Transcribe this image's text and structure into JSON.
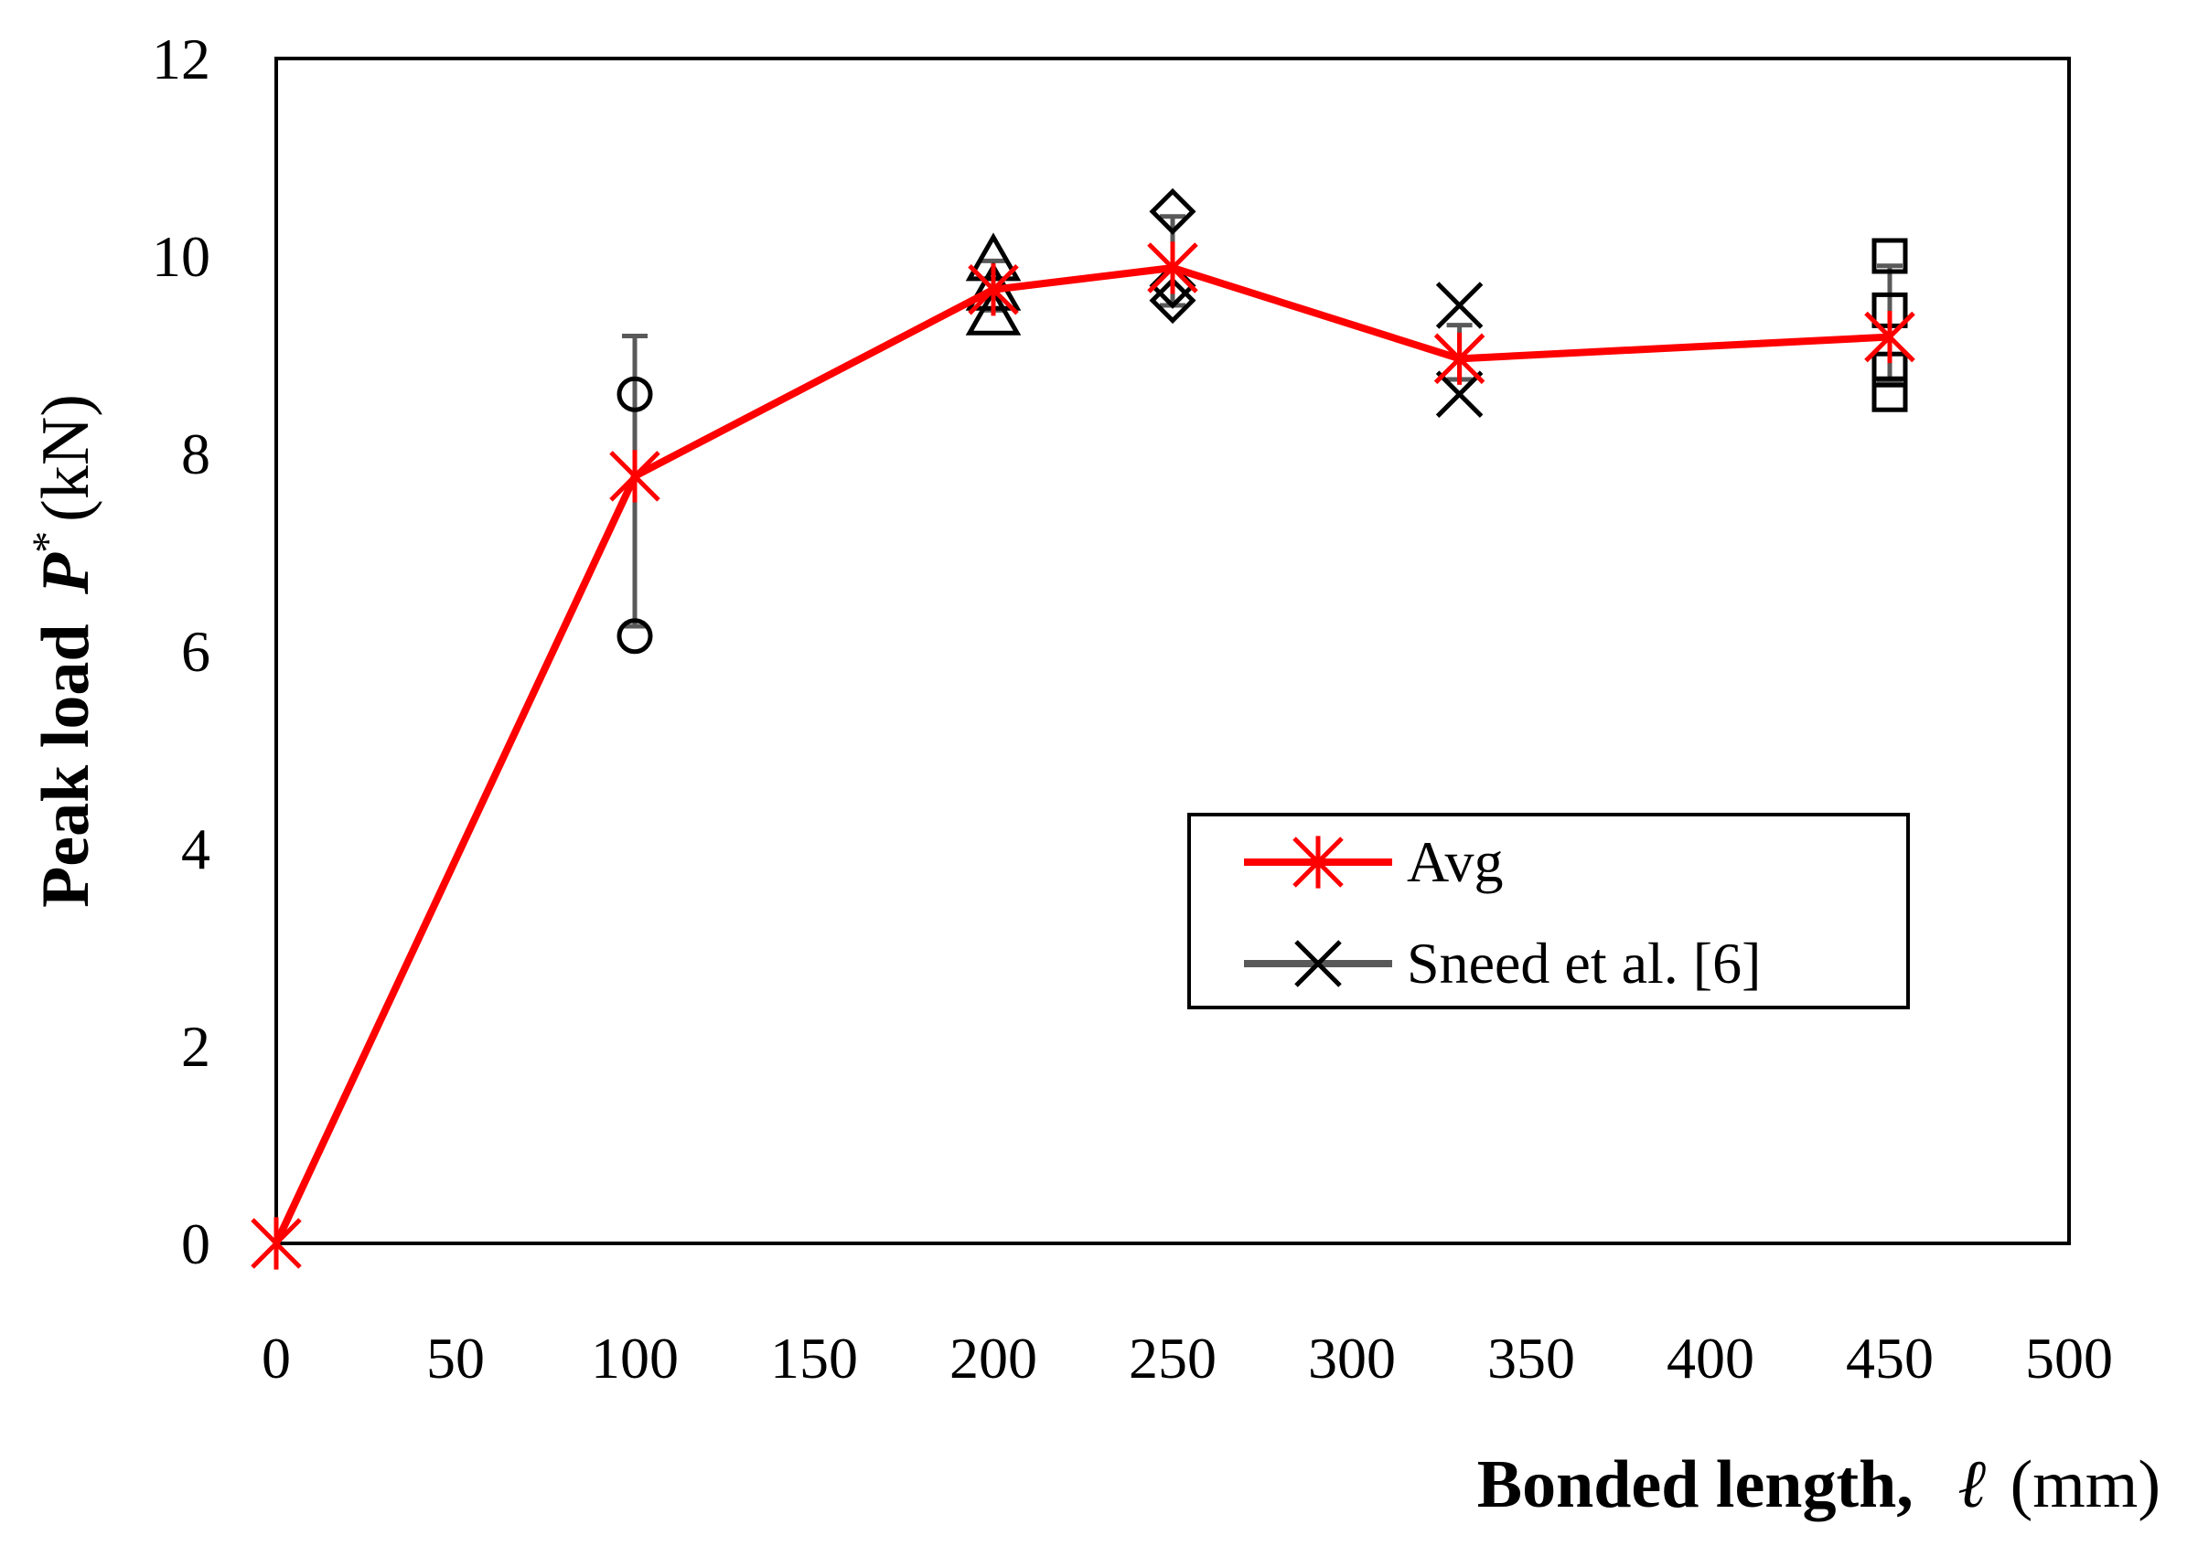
{
  "chart_data": {
    "type": "line",
    "title": "",
    "xlabel": {
      "main": "Bonded length,",
      "symbol": "ℓ",
      "unit": "(mm)"
    },
    "ylabel": {
      "main": "Peak load",
      "symbol": "P",
      "superscript": "*",
      "unit": "(kN)"
    },
    "xlim": [
      0,
      500
    ],
    "ylim": [
      0,
      12
    ],
    "xticks": [
      0,
      50,
      100,
      150,
      200,
      250,
      300,
      350,
      400,
      450,
      500
    ],
    "yticks": [
      0,
      2,
      4,
      6,
      8,
      10,
      12
    ],
    "grid": false,
    "legend_position": "center-right",
    "series": [
      {
        "name": "Avg",
        "color": "#ff0000",
        "marker": "asterisk",
        "points": [
          {
            "x": 0,
            "y": 0
          },
          {
            "x": 100,
            "y": 7.77
          },
          {
            "x": 200,
            "y": 9.66
          },
          {
            "x": 250,
            "y": 9.88
          },
          {
            "x": 330,
            "y": 8.96
          },
          {
            "x": 450,
            "y": 9.18
          }
        ]
      },
      {
        "name": "Sneed et al. [6]",
        "color": "#595959",
        "marker": "x",
        "error_bars": [
          {
            "x": 100,
            "low": 6.25,
            "high": 9.19
          },
          {
            "x": 200,
            "low": 9.45,
            "high": 9.95
          },
          {
            "x": 250,
            "low": 9.5,
            "high": 10.4
          },
          {
            "x": 330,
            "low": 8.75,
            "high": 9.3
          },
          {
            "x": 450,
            "low": 8.72,
            "high": 9.9
          }
        ]
      }
    ],
    "specimens": [
      {
        "x": 100,
        "marker": "circle",
        "values": [
          8.6,
          6.15
        ]
      },
      {
        "x": 200,
        "marker": "triangle",
        "values": [
          9.95,
          9.65,
          9.4
        ]
      },
      {
        "x": 250,
        "marker": "diamond",
        "values": [
          10.45,
          9.7,
          9.55
        ]
      },
      {
        "x": 330,
        "marker": "x",
        "values": [
          9.5,
          8.6
        ]
      },
      {
        "x": 450,
        "marker": "square",
        "values": [
          10.0,
          9.45,
          8.85,
          8.6
        ]
      }
    ]
  }
}
